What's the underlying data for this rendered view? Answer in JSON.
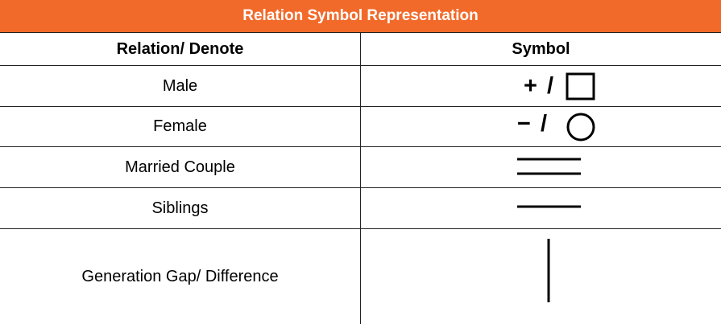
{
  "table": {
    "title": "Relation Symbol Representation",
    "headers": {
      "relation": "Relation/ Denote",
      "symbol": "Symbol"
    },
    "rows": [
      {
        "relation": "Male",
        "symbol_text": "+ /",
        "symbol_shape": "square"
      },
      {
        "relation": "Female",
        "symbol_text": "− /",
        "symbol_shape": "circle"
      },
      {
        "relation": "Married Couple",
        "symbol_shape": "double-horizontal-line"
      },
      {
        "relation": "Siblings",
        "symbol_shape": "horizontal-line"
      },
      {
        "relation": "Generation Gap/ Difference",
        "symbol_shape": "vertical-line"
      }
    ]
  },
  "colors": {
    "header_bg": "#f26a2a",
    "header_text": "#ffffff",
    "border": "#222222"
  }
}
